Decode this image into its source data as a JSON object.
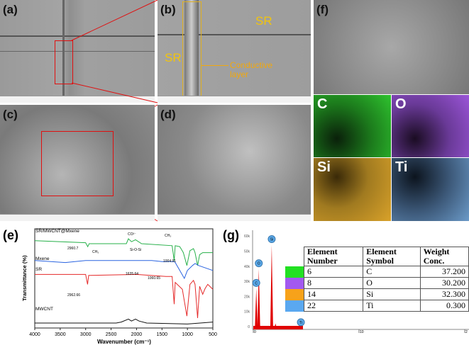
{
  "panels": {
    "a": "(a)",
    "b": "(b)",
    "c": "(c)",
    "d": "(d)",
    "e": "(e)",
    "f": "(f)",
    "g": "(g)"
  },
  "annotations": {
    "sr1": "SR",
    "sr2": "SR",
    "conductive": "Conductive layer"
  },
  "eds_maps": [
    {
      "label": "C",
      "color": "#2fc42f"
    },
    {
      "label": "O",
      "color": "#9b55d8"
    },
    {
      "label": "Si",
      "color": "#d9a22a"
    },
    {
      "label": "Ti",
      "color": "#6b9ac8"
    }
  ],
  "chart_data": [
    {
      "type": "line",
      "title": "",
      "xlabel": "Wavenumber (cm⁻¹)",
      "ylabel": "Transmittance (%)",
      "xlim": [
        4000,
        500
      ],
      "xticks": [
        4000,
        3500,
        3000,
        2500,
        2000,
        1500,
        1000,
        500
      ],
      "series": [
        {
          "name": "SR/MWCNT@Mxene",
          "color": "#27b04a",
          "offset": 0.88,
          "points": [
            [
              4000,
              0
            ],
            [
              3000,
              -0.02
            ],
            [
              2960,
              -0.06
            ],
            [
              2930,
              -0.03
            ],
            [
              2200,
              -0.03
            ],
            [
              2160,
              0.02
            ],
            [
              2100,
              -0.01
            ],
            [
              2020,
              0.01
            ],
            [
              1900,
              -0.03
            ],
            [
              1300,
              -0.05
            ],
            [
              1260,
              -0.2
            ],
            [
              1240,
              -0.05
            ],
            [
              1150,
              -0.06
            ],
            [
              1080,
              -0.12
            ],
            [
              1010,
              -0.25
            ],
            [
              950,
              -0.1
            ],
            [
              880,
              -0.08
            ],
            [
              850,
              -0.12
            ],
            [
              800,
              -0.25
            ],
            [
              760,
              -0.14
            ],
            [
              700,
              -0.12
            ],
            [
              500,
              -0.12
            ]
          ]
        },
        {
          "name": "Mxene",
          "color": "#2a64e0",
          "offset": 0.68,
          "points": [
            [
              4000,
              0
            ],
            [
              3400,
              -0.02
            ],
            [
              3000,
              0
            ],
            [
              1700,
              0
            ],
            [
              1500,
              -0.01
            ],
            [
              1250,
              -0.01
            ],
            [
              1150,
              -0.1
            ],
            [
              1060,
              -0.18
            ],
            [
              1000,
              -0.1
            ],
            [
              900,
              -0.05
            ],
            [
              850,
              -0.03
            ],
            [
              780,
              -0.05
            ],
            [
              500,
              -0.1
            ]
          ]
        },
        {
          "name": "SR",
          "color": "#e52a2a",
          "offset": 0.54,
          "points": [
            [
              4000,
              0
            ],
            [
              3000,
              0
            ],
            [
              2962,
              -0.1
            ],
            [
              2940,
              -0.01
            ],
            [
              2000,
              0
            ],
            [
              1420,
              -0.02
            ],
            [
              1300,
              -0.02
            ],
            [
              1260,
              -0.3
            ],
            [
              1240,
              -0.08
            ],
            [
              1100,
              -0.15
            ],
            [
              1010,
              -0.42
            ],
            [
              950,
              -0.1
            ],
            [
              880,
              -0.06
            ],
            [
              850,
              -0.1
            ],
            [
              800,
              -0.44
            ],
            [
              760,
              -0.12
            ],
            [
              700,
              -0.2
            ],
            [
              650,
              -0.14
            ],
            [
              600,
              -0.1
            ],
            [
              500,
              -0.15
            ]
          ]
        },
        {
          "name": "MWCNT",
          "color": "#111111",
          "offset": 0.05,
          "points": [
            [
              4000,
              0
            ],
            [
              2400,
              0
            ],
            [
              2300,
              0.01
            ],
            [
              2160,
              0.04
            ],
            [
              2100,
              0.02
            ],
            [
              2020,
              0.04
            ],
            [
              1950,
              0.02
            ],
            [
              1800,
              0
            ],
            [
              1000,
              -0.01
            ],
            [
              500,
              0.01
            ]
          ]
        }
      ],
      "annotations": [
        "2960.7",
        "CH₃",
        "CO²⁻",
        "CH₃",
        "Si-O-Si",
        "1004.91",
        "1635.64",
        "1060.65",
        "2962.66"
      ]
    },
    {
      "type": "bar",
      "title": "",
      "xlabel": "keV",
      "yticks": [
        "0",
        "10k",
        "20k",
        "30k",
        "40k",
        "50k",
        "60k"
      ],
      "xticks": [
        "0",
        "10",
        "2"
      ],
      "ylim": [
        0,
        60000
      ],
      "xlim": [
        0,
        20
      ],
      "peaks": [
        {
          "element": "C",
          "kev": 0.28,
          "counts": 27000
        },
        {
          "element": "O",
          "kev": 0.52,
          "counts": 40000
        },
        {
          "element": "Si",
          "kev": 1.74,
          "counts": 56000
        },
        {
          "element": "Ti",
          "kev": 4.5,
          "counts": 1000
        }
      ],
      "small_peaks": [
        {
          "kev": 2.1,
          "counts": 4000
        }
      ]
    }
  ],
  "table": {
    "headers": [
      "Element Number",
      "Element Symbol",
      "Weight Conc."
    ],
    "rows": [
      {
        "color": "#22e022",
        "number": "6",
        "symbol": "C",
        "conc": "37.200"
      },
      {
        "color": "#a259f0",
        "number": "8",
        "symbol": "O",
        "conc": "30.200"
      },
      {
        "color": "#f7a21a",
        "number": "14",
        "symbol": "Si",
        "conc": "32.300"
      },
      {
        "color": "#5aa8f0",
        "number": "22",
        "symbol": "Ti",
        "conc": "0.300"
      }
    ]
  }
}
